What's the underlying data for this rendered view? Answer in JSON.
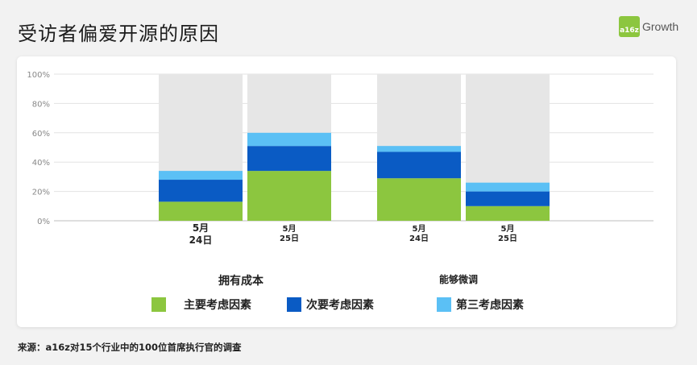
{
  "header": {
    "title": "受访者偏爱开源的原因",
    "logo_badge": "a16z",
    "logo_text": "Growth"
  },
  "colors": {
    "primary": "#8cc63f",
    "secondary": "#0a5bc4",
    "tertiary": "#5bc0f5",
    "background_bar": "#e6e6e6"
  },
  "chart_data": {
    "type": "bar",
    "stacked": true,
    "ylim": [
      0,
      100
    ],
    "y_ticks": [
      "0%",
      "20%",
      "40%",
      "60%",
      "80%",
      "100%"
    ],
    "grid": true,
    "groups": [
      "拥有成本",
      "能够微调"
    ],
    "categories": [
      {
        "month": "5月",
        "day": "24日"
      },
      {
        "month": "5月",
        "day": "25日"
      },
      {
        "month": "5月",
        "day": "24日"
      },
      {
        "month": "5月",
        "day": "25日"
      }
    ],
    "category_group": [
      0,
      0,
      1,
      1
    ],
    "series": [
      {
        "name": "主要考虑因素",
        "values": [
          13,
          34,
          29,
          10
        ]
      },
      {
        "name": "次要考虑因素",
        "values": [
          15,
          17,
          18,
          10
        ]
      },
      {
        "name": "第三考虑因素",
        "values": [
          6,
          9,
          4,
          6
        ]
      }
    ],
    "legend_position": "bottom"
  },
  "footer": {
    "source": "来源：a16z对15个行业中的100位首席执行官的调查"
  }
}
